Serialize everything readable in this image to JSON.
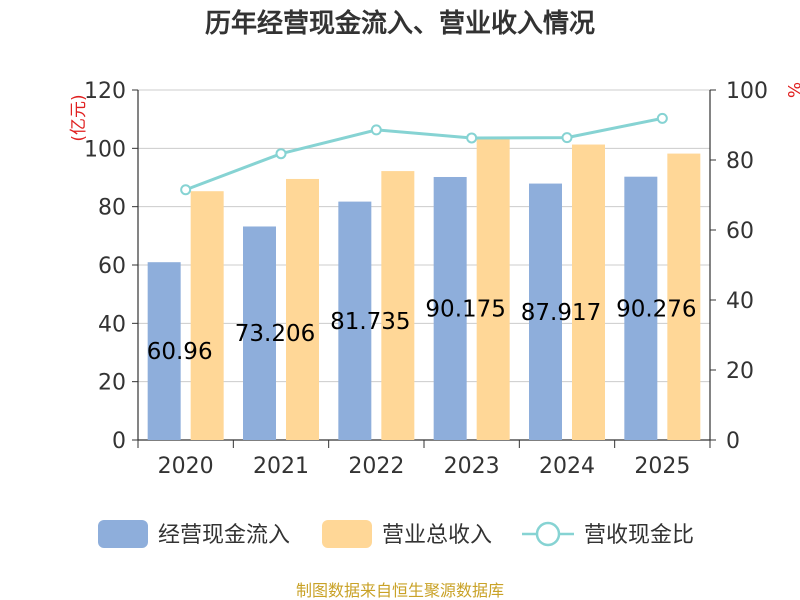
{
  "chart_data": {
    "type": "bar",
    "title": "历年经营现金流入、营业收入情况",
    "categories": [
      "2020",
      "2021",
      "2022",
      "2023",
      "2024",
      "2025"
    ],
    "left_axis": {
      "unit_label": "(亿元)",
      "ylim": [
        0,
        120
      ],
      "ticks": [
        "0",
        "20",
        "40",
        "60",
        "80",
        "100",
        "120"
      ]
    },
    "right_axis": {
      "unit_label": "%",
      "ylim": [
        0,
        100
      ],
      "ticks": [
        "0",
        "20",
        "40",
        "60",
        "80",
        "100"
      ]
    },
    "series": [
      {
        "name": "经营现金流入",
        "type": "bar",
        "axis": "left",
        "values": [
          60.96,
          73.206,
          81.735,
          90.175,
          87.917,
          90.276
        ],
        "data_labels": [
          "60.96",
          "73.206",
          "81.735",
          "90.175",
          "87.917",
          "90.276"
        ]
      },
      {
        "name": "营业总收入",
        "type": "bar",
        "axis": "left",
        "values": [
          85.3,
          89.5,
          92.2,
          103.2,
          101.3,
          98.2
        ]
      },
      {
        "name": "营收现金比",
        "type": "line",
        "axis": "right",
        "values": [
          71.5,
          81.8,
          88.6,
          86.3,
          86.4,
          91.9
        ]
      }
    ],
    "grid": true,
    "legend_position": "bottom",
    "source": "制图数据来自恒生聚源数据库"
  },
  "colors": {
    "bar_cash": "#8eaedb",
    "bar_revenue": "#ffd797",
    "line_ratio": "#86d3d3",
    "unit_label": "#e02020",
    "source_text": "#c9a227",
    "grid": "#cccccc",
    "axis": "#333333"
  }
}
